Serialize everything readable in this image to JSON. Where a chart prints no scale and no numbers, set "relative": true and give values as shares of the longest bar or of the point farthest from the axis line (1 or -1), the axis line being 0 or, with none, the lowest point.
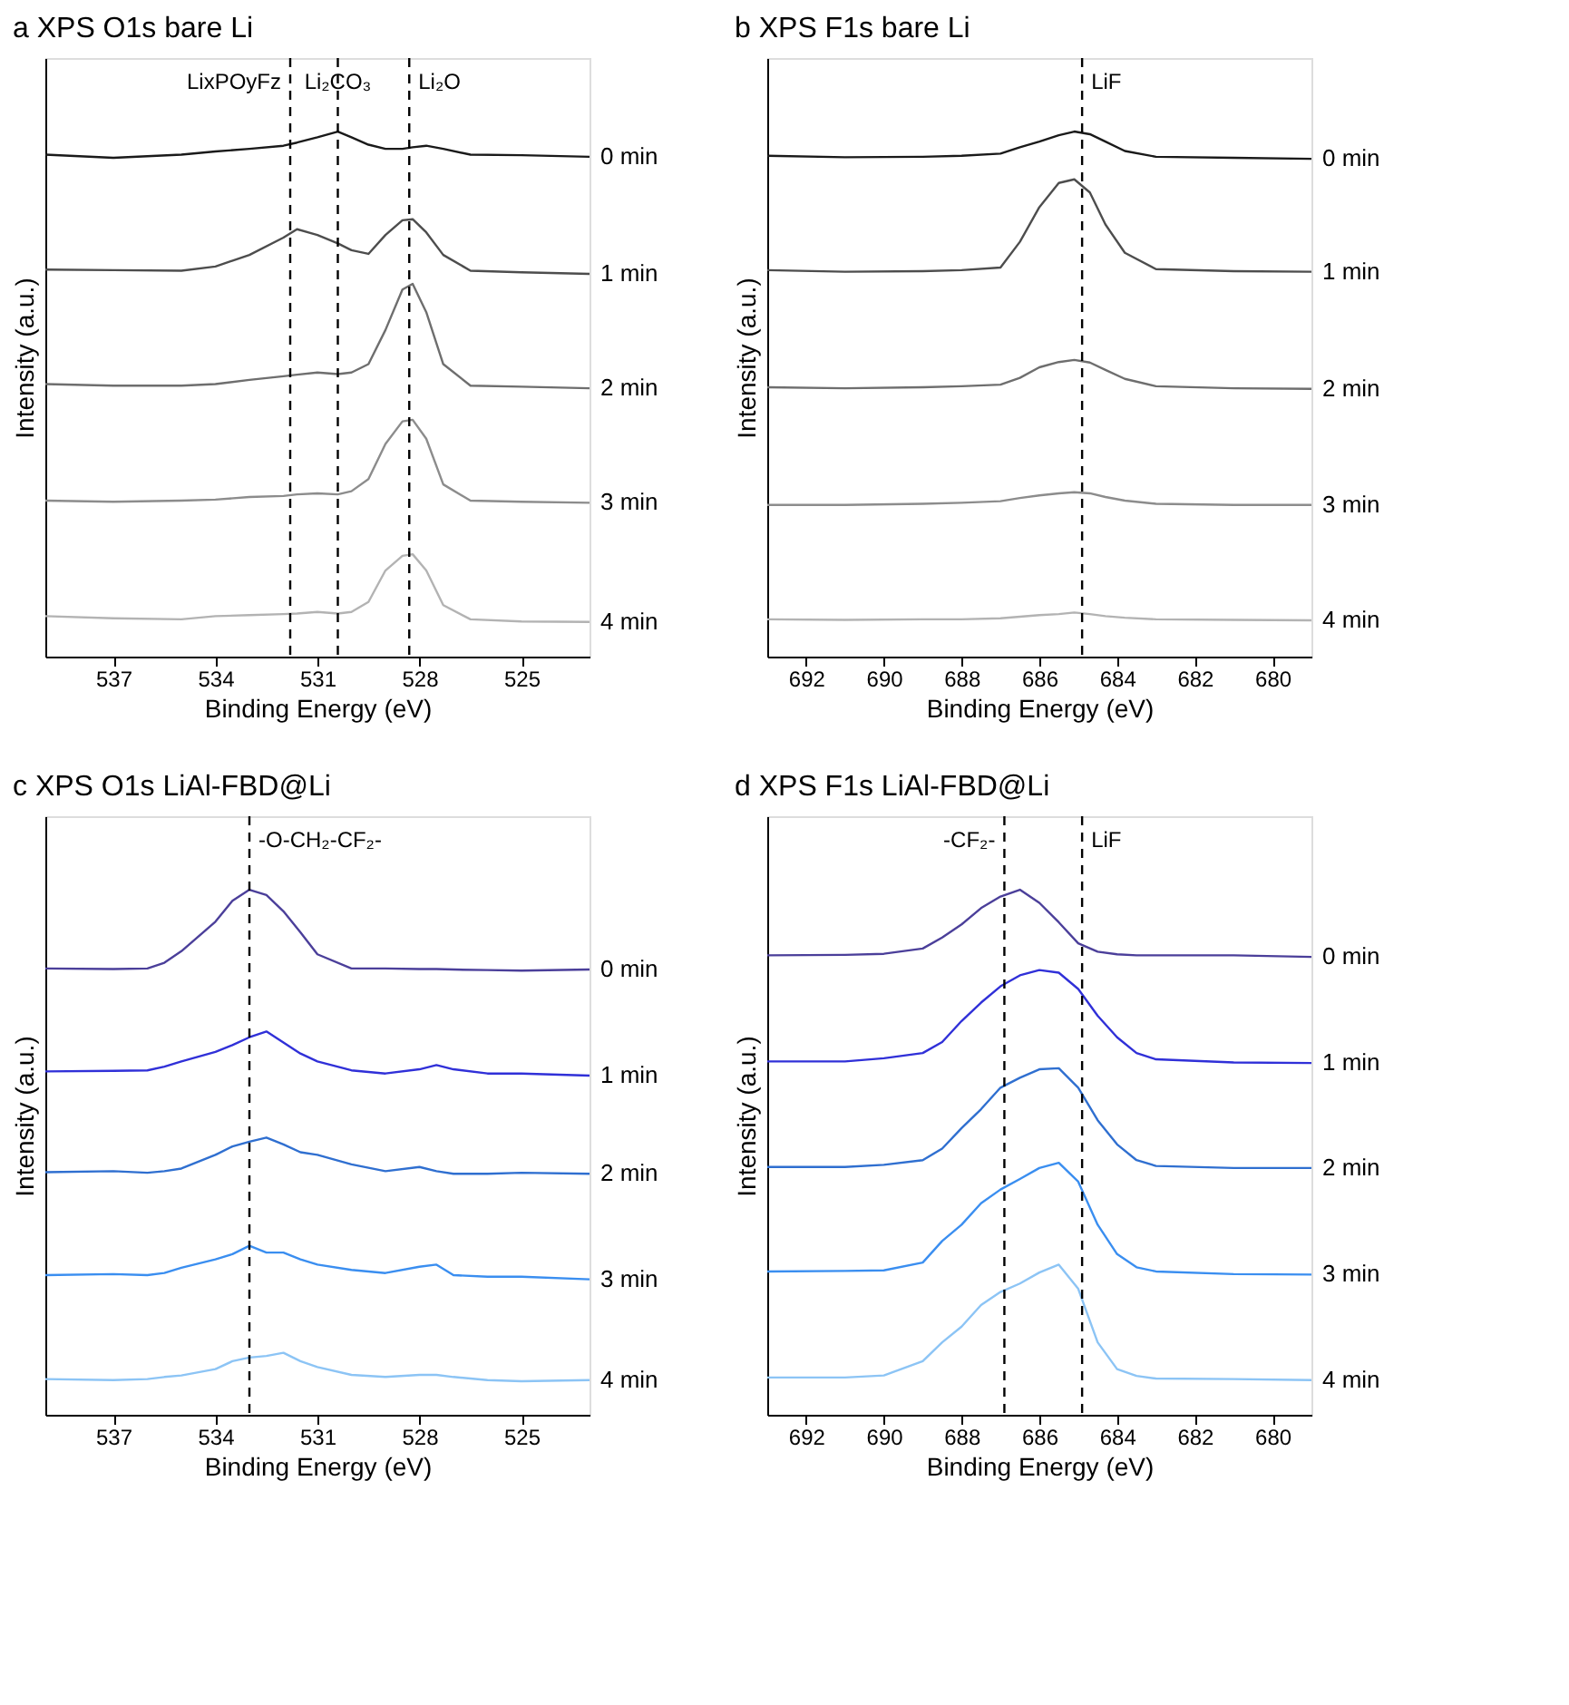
{
  "chart_data": [
    {
      "type": "line",
      "relative": true,
      "title": "a  XPS O1s bare Li",
      "xlabel": "Binding Energy (eV)",
      "ylabel": "Intensity (a.u.)",
      "xlim": [
        539,
        523
      ],
      "xticks": [
        537,
        534,
        531,
        528,
        525
      ],
      "x": [
        539,
        537,
        535,
        534,
        533,
        532,
        531.6,
        531,
        530.4,
        530,
        529.5,
        529,
        528.5,
        528.2,
        527.8,
        527.3,
        526.5,
        525,
        523
      ],
      "series": [
        {
          "name": "0 min",
          "color": "#1a1a1a",
          "values": [
            0.956,
            0.95,
            0.956,
            0.962,
            0.967,
            0.973,
            0.979,
            0.989,
            1.0,
            0.989,
            0.975,
            0.967,
            0.967,
            0.97,
            0.973,
            0.967,
            0.956,
            0.955,
            0.952
          ]
        },
        {
          "name": "1 min",
          "color": "#4d4d4d",
          "values": [
            0.737,
            0.736,
            0.735,
            0.743,
            0.765,
            0.798,
            0.814,
            0.803,
            0.787,
            0.774,
            0.767,
            0.803,
            0.831,
            0.833,
            0.808,
            0.765,
            0.735,
            0.732,
            0.729
          ]
        },
        {
          "name": "2 min",
          "color": "#6e6e6e",
          "values": [
            0.519,
            0.516,
            0.516,
            0.519,
            0.527,
            0.534,
            0.537,
            0.541,
            0.538,
            0.541,
            0.557,
            0.622,
            0.699,
            0.71,
            0.656,
            0.557,
            0.516,
            0.514,
            0.511
          ]
        },
        {
          "name": "3 min",
          "color": "#8c8c8c",
          "values": [
            0.297,
            0.295,
            0.297,
            0.299,
            0.304,
            0.306,
            0.309,
            0.311,
            0.309,
            0.315,
            0.338,
            0.405,
            0.448,
            0.451,
            0.415,
            0.328,
            0.297,
            0.295,
            0.293
          ]
        },
        {
          "name": "4 min",
          "color": "#b3b3b3",
          "values": [
            0.077,
            0.073,
            0.071,
            0.077,
            0.079,
            0.081,
            0.082,
            0.085,
            0.082,
            0.085,
            0.104,
            0.164,
            0.192,
            0.195,
            0.164,
            0.098,
            0.071,
            0.067,
            0.066
          ]
        }
      ],
      "ref_lines": [
        {
          "axis": "x",
          "value": 531.8,
          "label": "LixPOyFz",
          "color": "#000000",
          "line_style": "dashed"
        },
        {
          "axis": "x",
          "value": 530.4,
          "label": "Li₂CO₃",
          "color": "#000000",
          "line_style": "dashed"
        },
        {
          "axis": "x",
          "value": 528.3,
          "label": "Li₂O",
          "color": "#000000",
          "line_style": "dashed"
        }
      ]
    },
    {
      "type": "line",
      "relative": true,
      "title": "b  XPS F1s  bare Li",
      "xlabel": "Binding Energy (eV)",
      "ylabel": "Intensity (a.u.)",
      "xlim": [
        693,
        679
      ],
      "xticks": [
        692,
        690,
        688,
        686,
        684,
        682,
        680
      ],
      "x": [
        693,
        691,
        689,
        688,
        687,
        686.5,
        686,
        685.5,
        685.1,
        684.7,
        684.3,
        683.8,
        683,
        681,
        679
      ],
      "series": [
        {
          "name": "0 min",
          "color": "#1a1a1a",
          "values": [
            0.954,
            0.951,
            0.952,
            0.954,
            0.958,
            0.97,
            0.981,
            0.993,
            1.0,
            0.995,
            0.981,
            0.963,
            0.952,
            0.95,
            0.948
          ]
        },
        {
          "name": "1 min",
          "color": "#4d4d4d",
          "values": [
            0.736,
            0.733,
            0.734,
            0.736,
            0.741,
            0.79,
            0.856,
            0.902,
            0.909,
            0.884,
            0.823,
            0.769,
            0.738,
            0.734,
            0.733
          ]
        },
        {
          "name": "2 min",
          "color": "#6e6e6e",
          "values": [
            0.513,
            0.511,
            0.513,
            0.515,
            0.518,
            0.531,
            0.551,
            0.561,
            0.565,
            0.56,
            0.546,
            0.529,
            0.515,
            0.511,
            0.51
          ]
        },
        {
          "name": "3 min",
          "color": "#8c8c8c",
          "values": [
            0.289,
            0.289,
            0.291,
            0.293,
            0.296,
            0.302,
            0.307,
            0.311,
            0.313,
            0.311,
            0.304,
            0.297,
            0.291,
            0.289,
            0.289
          ]
        },
        {
          "name": "4 min",
          "color": "#b3b3b3",
          "values": [
            0.071,
            0.07,
            0.071,
            0.071,
            0.073,
            0.076,
            0.079,
            0.081,
            0.084,
            0.081,
            0.077,
            0.074,
            0.071,
            0.07,
            0.069
          ]
        }
      ],
      "ref_lines": [
        {
          "axis": "x",
          "value": 684.9,
          "label": "LiF",
          "color": "#000000",
          "line_style": "dashed"
        }
      ]
    },
    {
      "type": "line",
      "relative": true,
      "title": "c  XPS O1s  LiAl-FBD@Li",
      "xlabel": "Binding Energy (eV)",
      "ylabel": "Intensity (a.u.)",
      "xlim": [
        539,
        523
      ],
      "xticks": [
        537,
        534,
        531,
        528,
        525
      ],
      "x": [
        539,
        537,
        536,
        535.5,
        535,
        534,
        533.5,
        533,
        532.5,
        532,
        531.5,
        531,
        530,
        529,
        528,
        527.5,
        527,
        526,
        525,
        523
      ],
      "series": [
        {
          "name": "0 min",
          "color": "#4b3f9a",
          "values": [
            0.85,
            0.849,
            0.85,
            0.861,
            0.883,
            0.939,
            0.979,
            1.0,
            0.99,
            0.959,
            0.919,
            0.877,
            0.85,
            0.85,
            0.849,
            0.849,
            0.848,
            0.847,
            0.846,
            0.848
          ]
        },
        {
          "name": "1 min",
          "color": "#3030d8",
          "values": [
            0.654,
            0.655,
            0.656,
            0.663,
            0.673,
            0.691,
            0.704,
            0.719,
            0.73,
            0.709,
            0.688,
            0.673,
            0.656,
            0.65,
            0.658,
            0.666,
            0.658,
            0.65,
            0.65,
            0.646
          ]
        },
        {
          "name": "2 min",
          "color": "#2f6fd0",
          "values": [
            0.462,
            0.464,
            0.461,
            0.464,
            0.469,
            0.495,
            0.511,
            0.52,
            0.528,
            0.515,
            0.5,
            0.495,
            0.477,
            0.464,
            0.472,
            0.464,
            0.459,
            0.459,
            0.461,
            0.459
          ]
        },
        {
          "name": "3 min",
          "color": "#3a8ef0",
          "values": [
            0.266,
            0.268,
            0.266,
            0.27,
            0.28,
            0.296,
            0.306,
            0.322,
            0.309,
            0.309,
            0.296,
            0.286,
            0.276,
            0.27,
            0.282,
            0.286,
            0.266,
            0.263,
            0.263,
            0.258
          ]
        },
        {
          "name": "4 min",
          "color": "#8cc4f5",
          "values": [
            0.068,
            0.066,
            0.068,
            0.072,
            0.075,
            0.087,
            0.102,
            0.109,
            0.112,
            0.118,
            0.102,
            0.091,
            0.076,
            0.072,
            0.076,
            0.076,
            0.072,
            0.066,
            0.064,
            0.066
          ]
        }
      ],
      "ref_lines": [
        {
          "axis": "x",
          "value": 533.0,
          "label": "-O-CH₂-CF₂-",
          "color": "#000000",
          "line_style": "dashed"
        }
      ]
    },
    {
      "type": "line",
      "relative": true,
      "title": "d  XPS F1s  LiAl-FBD@Li",
      "xlabel": "Binding Energy (eV)",
      "ylabel": "Intensity (a.u.)",
      "xlim": [
        693,
        679
      ],
      "xticks": [
        692,
        690,
        688,
        686,
        684,
        682,
        680
      ],
      "x": [
        693,
        691,
        690,
        689,
        688.5,
        688,
        687.5,
        687,
        686.5,
        686,
        685.5,
        685,
        684.5,
        684,
        683.5,
        683,
        681,
        679
      ],
      "series": [
        {
          "name": "0 min",
          "color": "#4b3f9a",
          "values": [
            0.875,
            0.876,
            0.878,
            0.888,
            0.909,
            0.934,
            0.965,
            0.987,
            1.0,
            0.975,
            0.938,
            0.898,
            0.882,
            0.877,
            0.875,
            0.875,
            0.875,
            0.872
          ]
        },
        {
          "name": "1 min",
          "color": "#3030d8",
          "values": [
            0.673,
            0.673,
            0.679,
            0.689,
            0.71,
            0.75,
            0.785,
            0.816,
            0.837,
            0.847,
            0.842,
            0.811,
            0.76,
            0.719,
            0.689,
            0.677,
            0.671,
            0.67
          ]
        },
        {
          "name": "2 min",
          "color": "#2f6fd0",
          "values": [
            0.472,
            0.472,
            0.476,
            0.485,
            0.507,
            0.546,
            0.582,
            0.623,
            0.642,
            0.658,
            0.66,
            0.623,
            0.561,
            0.515,
            0.485,
            0.474,
            0.47,
            0.47
          ]
        },
        {
          "name": "3 min",
          "color": "#3a8ef0",
          "values": [
            0.273,
            0.274,
            0.275,
            0.29,
            0.331,
            0.362,
            0.403,
            0.429,
            0.449,
            0.47,
            0.48,
            0.444,
            0.362,
            0.306,
            0.281,
            0.273,
            0.268,
            0.267
          ]
        },
        {
          "name": "4 min",
          "color": "#8cc4f5",
          "values": [
            0.071,
            0.071,
            0.075,
            0.102,
            0.138,
            0.168,
            0.209,
            0.234,
            0.25,
            0.271,
            0.286,
            0.24,
            0.138,
            0.087,
            0.074,
            0.069,
            0.068,
            0.066
          ]
        }
      ],
      "ref_lines": [
        {
          "axis": "x",
          "value": 686.9,
          "label": "-CF₂-",
          "color": "#000000",
          "line_style": "dashed"
        },
        {
          "axis": "x",
          "value": 684.9,
          "label": "LiF",
          "color": "#000000",
          "line_style": "dashed"
        }
      ]
    }
  ]
}
